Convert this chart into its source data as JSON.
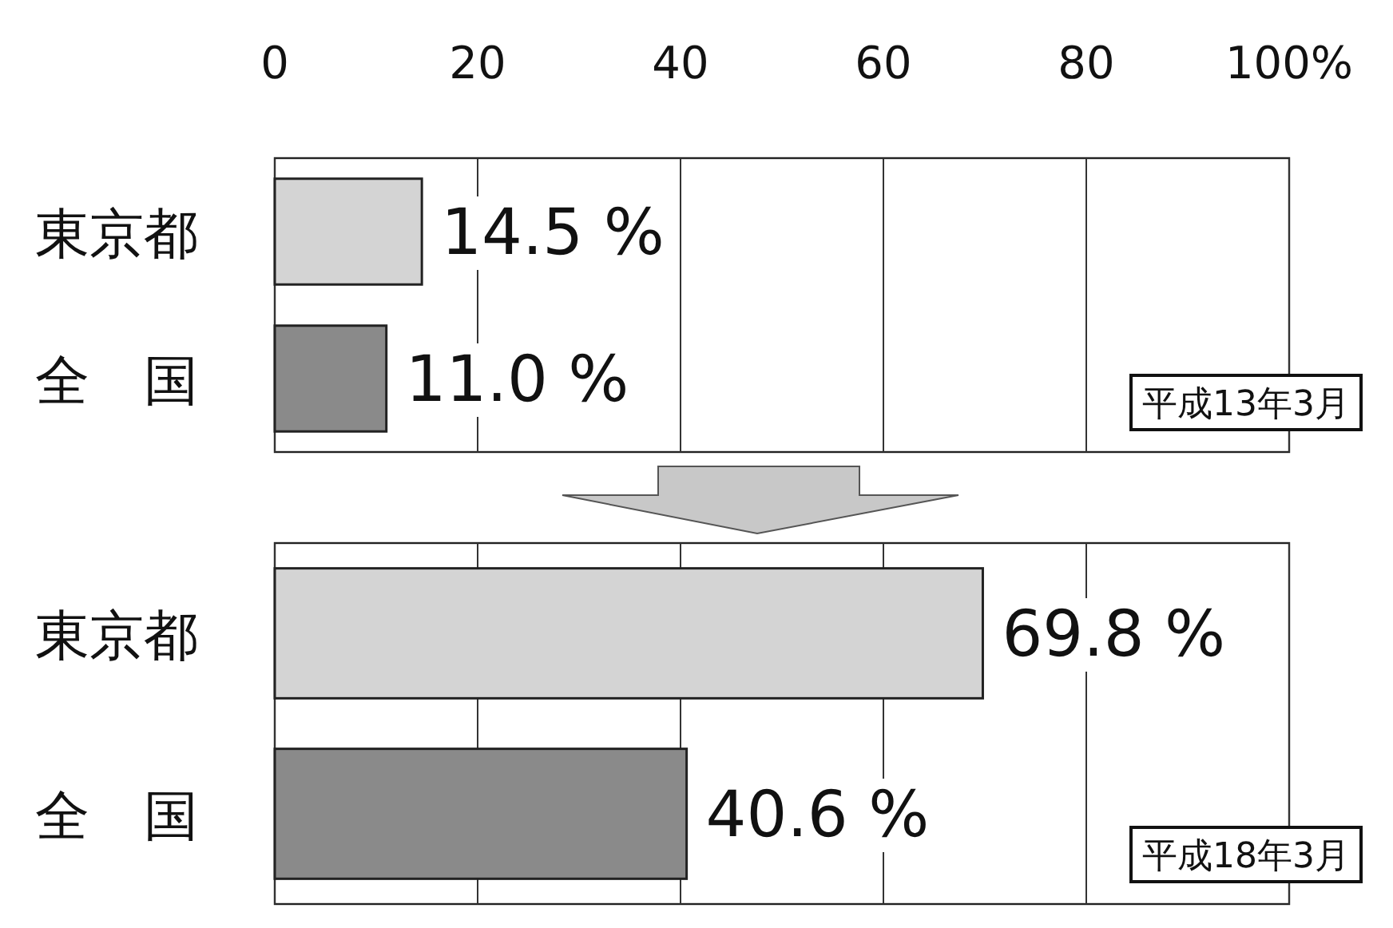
{
  "chart_data": [
    {
      "type": "bar",
      "orientation": "horizontal",
      "categories": [
        "東京都",
        "全　国"
      ],
      "values": [
        14.5,
        11.0
      ],
      "colors": [
        "#d4d4d4",
        "#8a8a8a"
      ],
      "value_labels": [
        "14.5 %",
        "11.0 %"
      ],
      "xlim": [
        0,
        100
      ],
      "xticks": [
        0,
        20,
        40,
        60,
        80,
        {
          "value": 100,
          "label": "100%"
        }
      ],
      "grid": "x",
      "annotations": [
        "平成13年3月"
      ]
    },
    {
      "type": "bar",
      "orientation": "horizontal",
      "categories": [
        "東京都",
        "全　国"
      ],
      "values": [
        69.8,
        40.6
      ],
      "colors": [
        "#d4d4d4",
        "#8a8a8a"
      ],
      "value_labels": [
        "69.8 %",
        "40.6 %"
      ],
      "xlim": [
        0,
        100
      ],
      "xticks": [
        0,
        20,
        40,
        60,
        80,
        100
      ],
      "grid": "x",
      "tick_labels": "y",
      "annotations": [
        "平成18年3月"
      ]
    }
  ]
}
